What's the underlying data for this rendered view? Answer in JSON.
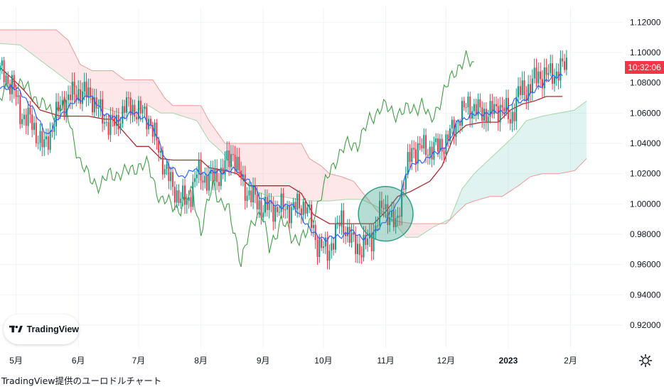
{
  "chart_data": {
    "type": "candlestick",
    "title": "",
    "ylim": [
      0.905,
      1.13
    ],
    "y_ticks": [
      "1.12000",
      "1.10000",
      "1.08000",
      "1.06000",
      "1.04000",
      "1.02000",
      "1.00000",
      "0.98000",
      "0.96000",
      "0.94000",
      "0.92000"
    ],
    "x_ticks": [
      "5月",
      "6月",
      "7月",
      "8月",
      "9月",
      "10月",
      "11月",
      "12月",
      "2023",
      "2月"
    ],
    "x_range_days": [
      0,
      310
    ],
    "x_tick_days": [
      8,
      39,
      69,
      100,
      131,
      161,
      192,
      222,
      253,
      284
    ],
    "current_time_label": "10:32:06",
    "colors": {
      "up": "#089981",
      "down": "#f23645",
      "tenkan": "#2962ff",
      "kijun": "#b22833",
      "chikou": "#43a047",
      "span_a": "#a5d6a7",
      "span_b": "#ef9a9a",
      "cloud_bear": "rgba(242,54,69,0.12)",
      "cloud_bull": "rgba(8,153,129,0.12)",
      "highlight_circle": "#2e9e82"
    },
    "candles_anchor": [
      [
        0,
        1.088
      ],
      [
        6,
        1.079
      ],
      [
        10,
        1.06
      ],
      [
        15,
        1.055
      ],
      [
        22,
        1.037
      ],
      [
        30,
        1.065
      ],
      [
        38,
        1.074
      ],
      [
        45,
        1.072
      ],
      [
        52,
        1.055
      ],
      [
        58,
        1.052
      ],
      [
        62,
        1.065
      ],
      [
        68,
        1.062
      ],
      [
        74,
        1.057
      ],
      [
        80,
        1.032
      ],
      [
        86,
        1.01
      ],
      [
        93,
        1.0
      ],
      [
        98,
        1.02
      ],
      [
        104,
        1.016
      ],
      [
        110,
        1.02
      ],
      [
        116,
        1.035
      ],
      [
        118,
        1.024
      ],
      [
        122,
        1.01
      ],
      [
        130,
        0.998
      ],
      [
        138,
        0.997
      ],
      [
        145,
        0.997
      ],
      [
        152,
        1.0
      ],
      [
        158,
        0.974
      ],
      [
        163,
        0.968
      ],
      [
        170,
        0.99
      ],
      [
        175,
        0.975
      ],
      [
        180,
        0.97
      ],
      [
        185,
        0.978
      ],
      [
        191,
        1.0
      ],
      [
        197,
        0.984
      ],
      [
        200,
        1.008
      ],
      [
        205,
        1.036
      ],
      [
        210,
        1.037
      ],
      [
        216,
        1.036
      ],
      [
        222,
        1.041
      ],
      [
        228,
        1.056
      ],
      [
        233,
        1.066
      ],
      [
        238,
        1.061
      ],
      [
        244,
        1.06
      ],
      [
        250,
        1.065
      ],
      [
        254,
        1.055
      ],
      [
        258,
        1.073
      ],
      [
        262,
        1.075
      ],
      [
        268,
        1.085
      ],
      [
        274,
        1.085
      ],
      [
        278,
        1.088
      ],
      [
        282,
        1.092
      ]
    ],
    "tenkan_anchor": [
      [
        0,
        1.078
      ],
      [
        10,
        1.075
      ],
      [
        16,
        1.063
      ],
      [
        24,
        1.045
      ],
      [
        30,
        1.059
      ],
      [
        38,
        1.068
      ],
      [
        44,
        1.072
      ],
      [
        52,
        1.06
      ],
      [
        58,
        1.055
      ],
      [
        62,
        1.058
      ],
      [
        66,
        1.06
      ],
      [
        72,
        1.057
      ],
      [
        78,
        1.045
      ],
      [
        84,
        1.025
      ],
      [
        90,
        1.018
      ],
      [
        96,
        1.022
      ],
      [
        104,
        1.02
      ],
      [
        112,
        1.022
      ],
      [
        118,
        1.022
      ],
      [
        124,
        1.015
      ],
      [
        130,
        1.004
      ],
      [
        138,
        0.998
      ],
      [
        144,
        1.0
      ],
      [
        150,
        0.992
      ],
      [
        156,
        0.98
      ],
      [
        162,
        0.977
      ],
      [
        168,
        0.978
      ],
      [
        174,
        0.982
      ],
      [
        180,
        0.978
      ],
      [
        186,
        0.98
      ],
      [
        192,
        0.99
      ],
      [
        198,
        1.0
      ],
      [
        202,
        1.02
      ],
      [
        206,
        1.026
      ],
      [
        212,
        1.03
      ],
      [
        218,
        1.034
      ],
      [
        224,
        1.042
      ],
      [
        228,
        1.055
      ],
      [
        234,
        1.058
      ],
      [
        240,
        1.06
      ],
      [
        246,
        1.06
      ],
      [
        252,
        1.062
      ],
      [
        256,
        1.068
      ],
      [
        260,
        1.068
      ],
      [
        266,
        1.074
      ],
      [
        272,
        1.082
      ],
      [
        278,
        1.084
      ],
      [
        280,
        1.086
      ]
    ],
    "kijun_anchor": [
      [
        0,
        1.09
      ],
      [
        6,
        1.083
      ],
      [
        12,
        1.075
      ],
      [
        20,
        1.062
      ],
      [
        30,
        1.058
      ],
      [
        44,
        1.058
      ],
      [
        52,
        1.056
      ],
      [
        56,
        1.056
      ],
      [
        62,
        1.047
      ],
      [
        68,
        1.038
      ],
      [
        74,
        1.038
      ],
      [
        80,
        1.03
      ],
      [
        86,
        1.029
      ],
      [
        100,
        1.029
      ],
      [
        104,
        1.024
      ],
      [
        112,
        1.022
      ],
      [
        118,
        1.02
      ],
      [
        124,
        1.012
      ],
      [
        132,
        1.012
      ],
      [
        144,
        1.012
      ],
      [
        150,
        1.007
      ],
      [
        156,
        0.993
      ],
      [
        164,
        0.987
      ],
      [
        170,
        0.987
      ],
      [
        186,
        0.987
      ],
      [
        192,
        0.995
      ],
      [
        198,
        1.005
      ],
      [
        204,
        1.008
      ],
      [
        214,
        1.015
      ],
      [
        220,
        1.025
      ],
      [
        226,
        1.045
      ],
      [
        232,
        1.052
      ],
      [
        240,
        1.054
      ],
      [
        248,
        1.054
      ],
      [
        254,
        1.062
      ],
      [
        260,
        1.066
      ],
      [
        266,
        1.068
      ],
      [
        272,
        1.071
      ],
      [
        280,
        1.071
      ]
    ],
    "chikou_anchor": [
      [
        0,
        1.07
      ],
      [
        8,
        1.082
      ],
      [
        14,
        1.075
      ],
      [
        20,
        1.067
      ],
      [
        26,
        1.06
      ],
      [
        32,
        1.066
      ],
      [
        40,
        1.027
      ],
      [
        44,
        1.018
      ],
      [
        50,
        1.012
      ],
      [
        55,
        1.02
      ],
      [
        62,
        1.02
      ],
      [
        68,
        1.025
      ],
      [
        74,
        1.025
      ],
      [
        80,
        1.002
      ],
      [
        86,
        1.0
      ],
      [
        90,
        0.996
      ],
      [
        96,
        1.01
      ],
      [
        100,
        0.98
      ],
      [
        106,
        1.015
      ],
      [
        110,
        1.0
      ],
      [
        114,
        0.995
      ],
      [
        118,
        0.975
      ],
      [
        120,
        0.96
      ],
      [
        126,
        0.99
      ],
      [
        130,
        0.995
      ],
      [
        134,
        0.97
      ],
      [
        140,
        0.99
      ],
      [
        145,
        0.978
      ],
      [
        152,
        0.978
      ],
      [
        158,
        1.0
      ],
      [
        164,
        1.02
      ],
      [
        168,
        1.032
      ],
      [
        172,
        1.038
      ],
      [
        178,
        1.04
      ],
      [
        184,
        1.055
      ],
      [
        190,
        1.065
      ],
      [
        196,
        1.06
      ],
      [
        204,
        1.062
      ],
      [
        210,
        1.066
      ],
      [
        214,
        1.055
      ],
      [
        220,
        1.07
      ],
      [
        226,
        1.088
      ],
      [
        232,
        1.095
      ],
      [
        236,
        1.092
      ]
    ],
    "span_a_anchor": [
      [
        0,
        1.106
      ],
      [
        10,
        1.105
      ],
      [
        20,
        1.095
      ],
      [
        30,
        1.085
      ],
      [
        40,
        1.075
      ],
      [
        50,
        1.064
      ],
      [
        60,
        1.06
      ],
      [
        68,
        1.062
      ],
      [
        74,
        1.065
      ],
      [
        80,
        1.06
      ],
      [
        86,
        1.06
      ],
      [
        98,
        1.055
      ],
      [
        104,
        1.042
      ],
      [
        110,
        1.035
      ],
      [
        116,
        1.025
      ],
      [
        122,
        1.015
      ],
      [
        128,
        1.008
      ],
      [
        134,
        1.005
      ],
      [
        140,
        1.005
      ],
      [
        148,
        1.003
      ],
      [
        156,
        1.002
      ],
      [
        164,
        1.002
      ],
      [
        172,
        1.003
      ],
      [
        180,
        1.003
      ],
      [
        188,
        0.998
      ],
      [
        196,
        0.988
      ],
      [
        202,
        0.978
      ],
      [
        208,
        0.978
      ],
      [
        216,
        0.985
      ],
      [
        224,
        0.99
      ],
      [
        230,
        1.01
      ],
      [
        236,
        1.02
      ],
      [
        240,
        1.025
      ],
      [
        248,
        1.035
      ],
      [
        256,
        1.045
      ],
      [
        262,
        1.055
      ],
      [
        270,
        1.058
      ],
      [
        278,
        1.06
      ],
      [
        286,
        1.062
      ],
      [
        292,
        1.068
      ]
    ],
    "span_b_anchor": [
      [
        0,
        1.115
      ],
      [
        28,
        1.115
      ],
      [
        34,
        1.108
      ],
      [
        40,
        1.092
      ],
      [
        46,
        1.088
      ],
      [
        56,
        1.088
      ],
      [
        62,
        1.082
      ],
      [
        76,
        1.082
      ],
      [
        82,
        1.07
      ],
      [
        86,
        1.065
      ],
      [
        100,
        1.065
      ],
      [
        104,
        1.055
      ],
      [
        112,
        1.04
      ],
      [
        136,
        1.04
      ],
      [
        150,
        1.04
      ],
      [
        154,
        1.03
      ],
      [
        160,
        1.025
      ],
      [
        164,
        1.02
      ],
      [
        170,
        1.018
      ],
      [
        176,
        1.015
      ],
      [
        182,
        1.005
      ],
      [
        188,
        0.995
      ],
      [
        194,
        0.99
      ],
      [
        200,
        0.988
      ],
      [
        206,
        0.987
      ],
      [
        214,
        0.987
      ],
      [
        222,
        0.987
      ],
      [
        228,
        0.995
      ],
      [
        232,
        1.0
      ],
      [
        236,
        1.002
      ],
      [
        244,
        1.005
      ],
      [
        250,
        1.005
      ],
      [
        258,
        1.012
      ],
      [
        264,
        1.018
      ],
      [
        270,
        1.02
      ],
      [
        278,
        1.02
      ],
      [
        286,
        1.022
      ],
      [
        292,
        1.03
      ]
    ],
    "highlight_circle": {
      "x_day": 192,
      "y": 0.9935,
      "r_data": 0.018
    }
  },
  "ui": {
    "logo_text": "TradingView",
    "footer_text": "TradingView提供のユーロドルチャート"
  }
}
